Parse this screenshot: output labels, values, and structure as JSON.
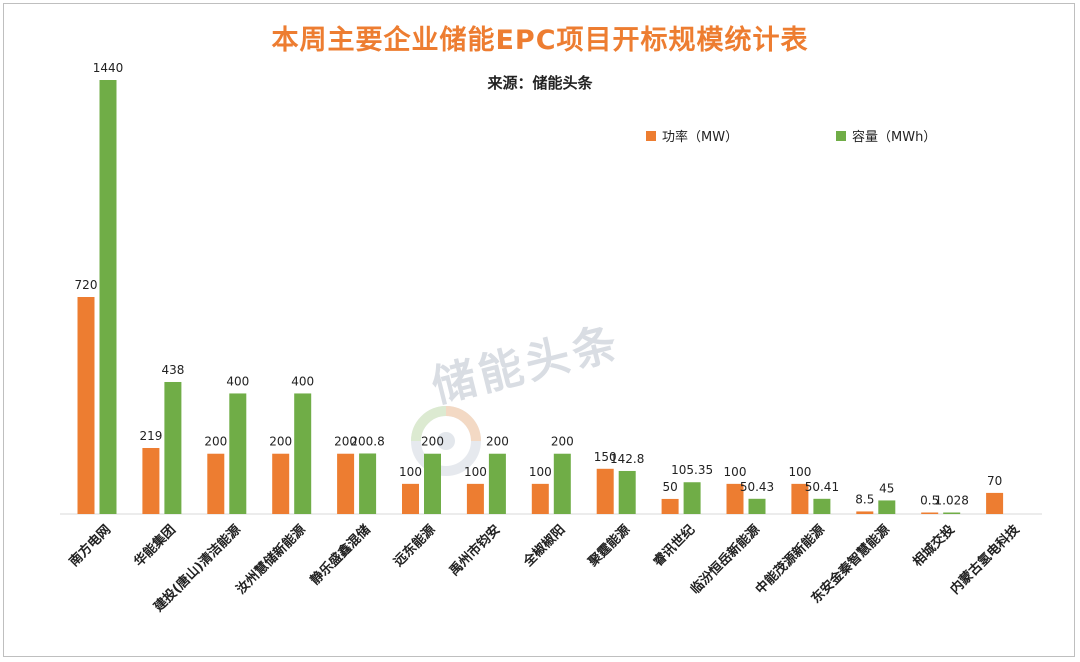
{
  "title": "本周主要企业储能EPC项目开标规模统计表",
  "subtitle": "来源：储能头条",
  "watermark": "储能头条",
  "legend": [
    {
      "label": "功率（MW）",
      "color": "#ed7d31"
    },
    {
      "label": "容量（MWh）",
      "color": "#70ad47"
    }
  ],
  "chart_data": {
    "type": "bar",
    "categories": [
      "南方电网",
      "华能集团",
      "建投(唐山)清洁能源",
      "汝州慧储新能源",
      "静乐盛鑫混储",
      "远东能源",
      "禹州市钧安",
      "全椒椒阳",
      "聚霆能源",
      "睿讯世纪",
      "临汾恒岳新能源",
      "中能茂源新能源",
      "东安金秦智慧能源",
      "相城交投",
      "内蒙古氢电科技"
    ],
    "series": [
      {
        "name": "功率（MW）",
        "color": "#ed7d31",
        "values": [
          720,
          219,
          200,
          200,
          200,
          100,
          100,
          100,
          150,
          50,
          100,
          100,
          8.5,
          0.5,
          70
        ],
        "labels": [
          "720",
          "219",
          "200",
          "200",
          "200",
          "100",
          "100",
          "100",
          "150",
          "50",
          "100",
          "100",
          "8.5",
          "0.5",
          "70"
        ]
      },
      {
        "name": "容量（MWh）",
        "color": "#70ad47",
        "values": [
          1440,
          438,
          400,
          400,
          200.8,
          200,
          200,
          200,
          142.8,
          105.35,
          50.43,
          50.41,
          45,
          1.028,
          null
        ],
        "labels": [
          "1440",
          "438",
          "400",
          "400",
          "200.8",
          "200",
          "200",
          "200",
          "142.8",
          "105.35",
          "50.43",
          "50.41",
          "45",
          "1.028",
          ""
        ]
      }
    ],
    "ylim": [
      0,
      1440
    ],
    "grid": false,
    "legend_position": "top-right"
  }
}
